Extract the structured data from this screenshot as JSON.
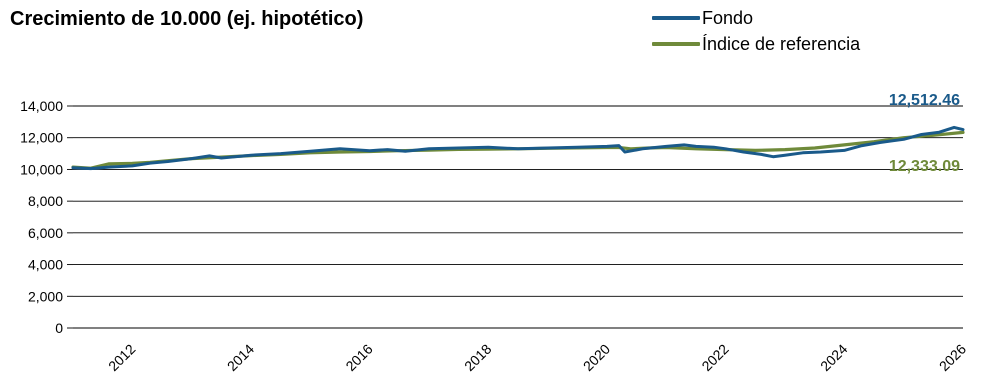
{
  "chart_data": {
    "type": "line",
    "title": "Crecimiento de 10.000 (ej. hipotético)",
    "xlabel": "",
    "ylabel": "",
    "ylim": [
      0,
      14000
    ],
    "yticks": [
      0,
      2000,
      4000,
      6000,
      8000,
      10000,
      12000,
      14000
    ],
    "ytick_labels": [
      "0",
      "2,000",
      "4,000",
      "6,000",
      "8,000",
      "10,000",
      "12,000",
      "14,000"
    ],
    "xlim": [
      2011.0,
      2026.0
    ],
    "xticks": [
      2012,
      2014,
      2016,
      2018,
      2020,
      2022,
      2024,
      2026
    ],
    "xtick_labels": [
      "2012",
      "2014",
      "2016",
      "2018",
      "2020",
      "2022",
      "2024",
      "2026"
    ],
    "grid": true,
    "legend_position": "top-right",
    "series": [
      {
        "name": "Fondo",
        "color": "#1a5a8a",
        "end_label": "12,512.46",
        "points": [
          [
            2011.0,
            10100
          ],
          [
            2011.3,
            10050
          ],
          [
            2011.6,
            10150
          ],
          [
            2012.0,
            10220
          ],
          [
            2012.3,
            10400
          ],
          [
            2012.6,
            10500
          ],
          [
            2013.0,
            10680
          ],
          [
            2013.3,
            10850
          ],
          [
            2013.5,
            10720
          ],
          [
            2013.8,
            10820
          ],
          [
            2014.0,
            10900
          ],
          [
            2014.5,
            11000
          ],
          [
            2015.0,
            11150
          ],
          [
            2015.5,
            11300
          ],
          [
            2016.0,
            11180
          ],
          [
            2016.3,
            11250
          ],
          [
            2016.6,
            11150
          ],
          [
            2017.0,
            11300
          ],
          [
            2017.5,
            11350
          ],
          [
            2018.0,
            11400
          ],
          [
            2018.5,
            11300
          ],
          [
            2019.0,
            11350
          ],
          [
            2019.5,
            11400
          ],
          [
            2020.0,
            11450
          ],
          [
            2020.2,
            11500
          ],
          [
            2020.3,
            11100
          ],
          [
            2020.6,
            11300
          ],
          [
            2021.0,
            11450
          ],
          [
            2021.3,
            11550
          ],
          [
            2021.5,
            11450
          ],
          [
            2021.8,
            11400
          ],
          [
            2022.0,
            11300
          ],
          [
            2022.3,
            11100
          ],
          [
            2022.6,
            10950
          ],
          [
            2022.8,
            10800
          ],
          [
            2023.0,
            10900
          ],
          [
            2023.3,
            11050
          ],
          [
            2023.6,
            11100
          ],
          [
            2024.0,
            11200
          ],
          [
            2024.3,
            11500
          ],
          [
            2024.6,
            11700
          ],
          [
            2025.0,
            11900
          ],
          [
            2025.3,
            12200
          ],
          [
            2025.6,
            12350
          ],
          [
            2025.85,
            12650
          ],
          [
            2026.0,
            12512.46
          ]
        ]
      },
      {
        "name": "Índice de referencia",
        "color": "#6f8a3a",
        "end_label": "12,333.09",
        "points": [
          [
            2011.0,
            10150
          ],
          [
            2011.3,
            10080
          ],
          [
            2011.6,
            10350
          ],
          [
            2012.0,
            10380
          ],
          [
            2012.3,
            10450
          ],
          [
            2012.6,
            10550
          ],
          [
            2013.0,
            10680
          ],
          [
            2013.5,
            10780
          ],
          [
            2014.0,
            10870
          ],
          [
            2014.5,
            10950
          ],
          [
            2015.0,
            11050
          ],
          [
            2015.5,
            11100
          ],
          [
            2016.0,
            11130
          ],
          [
            2016.5,
            11180
          ],
          [
            2017.0,
            11220
          ],
          [
            2017.5,
            11260
          ],
          [
            2018.0,
            11280
          ],
          [
            2018.5,
            11300
          ],
          [
            2019.0,
            11330
          ],
          [
            2019.5,
            11360
          ],
          [
            2020.0,
            11380
          ],
          [
            2020.2,
            11380
          ],
          [
            2020.4,
            11300
          ],
          [
            2020.7,
            11350
          ],
          [
            2021.0,
            11380
          ],
          [
            2021.5,
            11300
          ],
          [
            2022.0,
            11250
          ],
          [
            2022.5,
            11200
          ],
          [
            2023.0,
            11250
          ],
          [
            2023.5,
            11350
          ],
          [
            2024.0,
            11550
          ],
          [
            2024.5,
            11750
          ],
          [
            2025.0,
            12000
          ],
          [
            2025.5,
            12150
          ],
          [
            2026.0,
            12333.09
          ]
        ]
      }
    ]
  }
}
